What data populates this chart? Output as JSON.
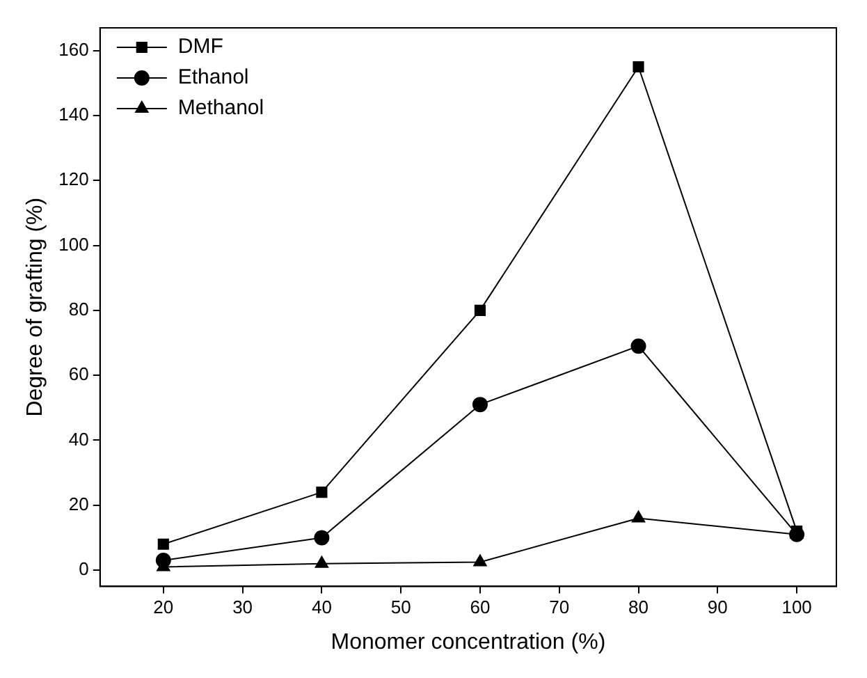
{
  "chart_data": {
    "type": "line",
    "xlabel": "Monomer concentration (%)",
    "ylabel": "Degree of grafting (%)",
    "x": [
      20,
      40,
      60,
      80,
      100
    ],
    "series": [
      {
        "name": "DMF",
        "color": "#000000",
        "marker": "square",
        "values": [
          8,
          24,
          80,
          155,
          12
        ]
      },
      {
        "name": "Ethanol",
        "color": "#000000",
        "marker": "circle",
        "values": [
          3,
          10,
          51,
          69,
          11
        ]
      },
      {
        "name": "Methanol",
        "color": "#000000",
        "marker": "triangle",
        "values": [
          1,
          2,
          2.5,
          16,
          11
        ]
      }
    ],
    "xlim": [
      12,
      105
    ],
    "xticks": [
      20,
      30,
      40,
      50,
      60,
      70,
      80,
      90,
      100
    ],
    "ylim": [
      -5,
      167
    ],
    "yticks": [
      0,
      20,
      40,
      60,
      80,
      100,
      120,
      140,
      160
    ],
    "grid": false,
    "legend": "top left",
    "line_style": "solid"
  }
}
